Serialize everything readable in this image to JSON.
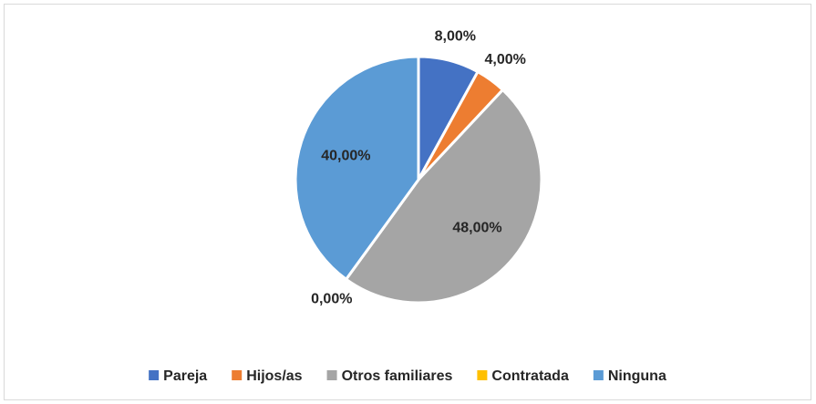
{
  "chart_data": {
    "type": "pie",
    "categories": [
      "Pareja",
      "Hijos/as",
      "Otros familiares",
      "Contratada",
      "Ninguna"
    ],
    "values": [
      8,
      4,
      48,
      0,
      40
    ],
    "value_labels": [
      "8,00%",
      "4,00%",
      "48,00%",
      "0,00%",
      "40,00%"
    ],
    "colors": [
      "#4472c4",
      "#ed7d31",
      "#a5a5a5",
      "#ffc000",
      "#5b9bd5"
    ],
    "legend": "bottom"
  }
}
